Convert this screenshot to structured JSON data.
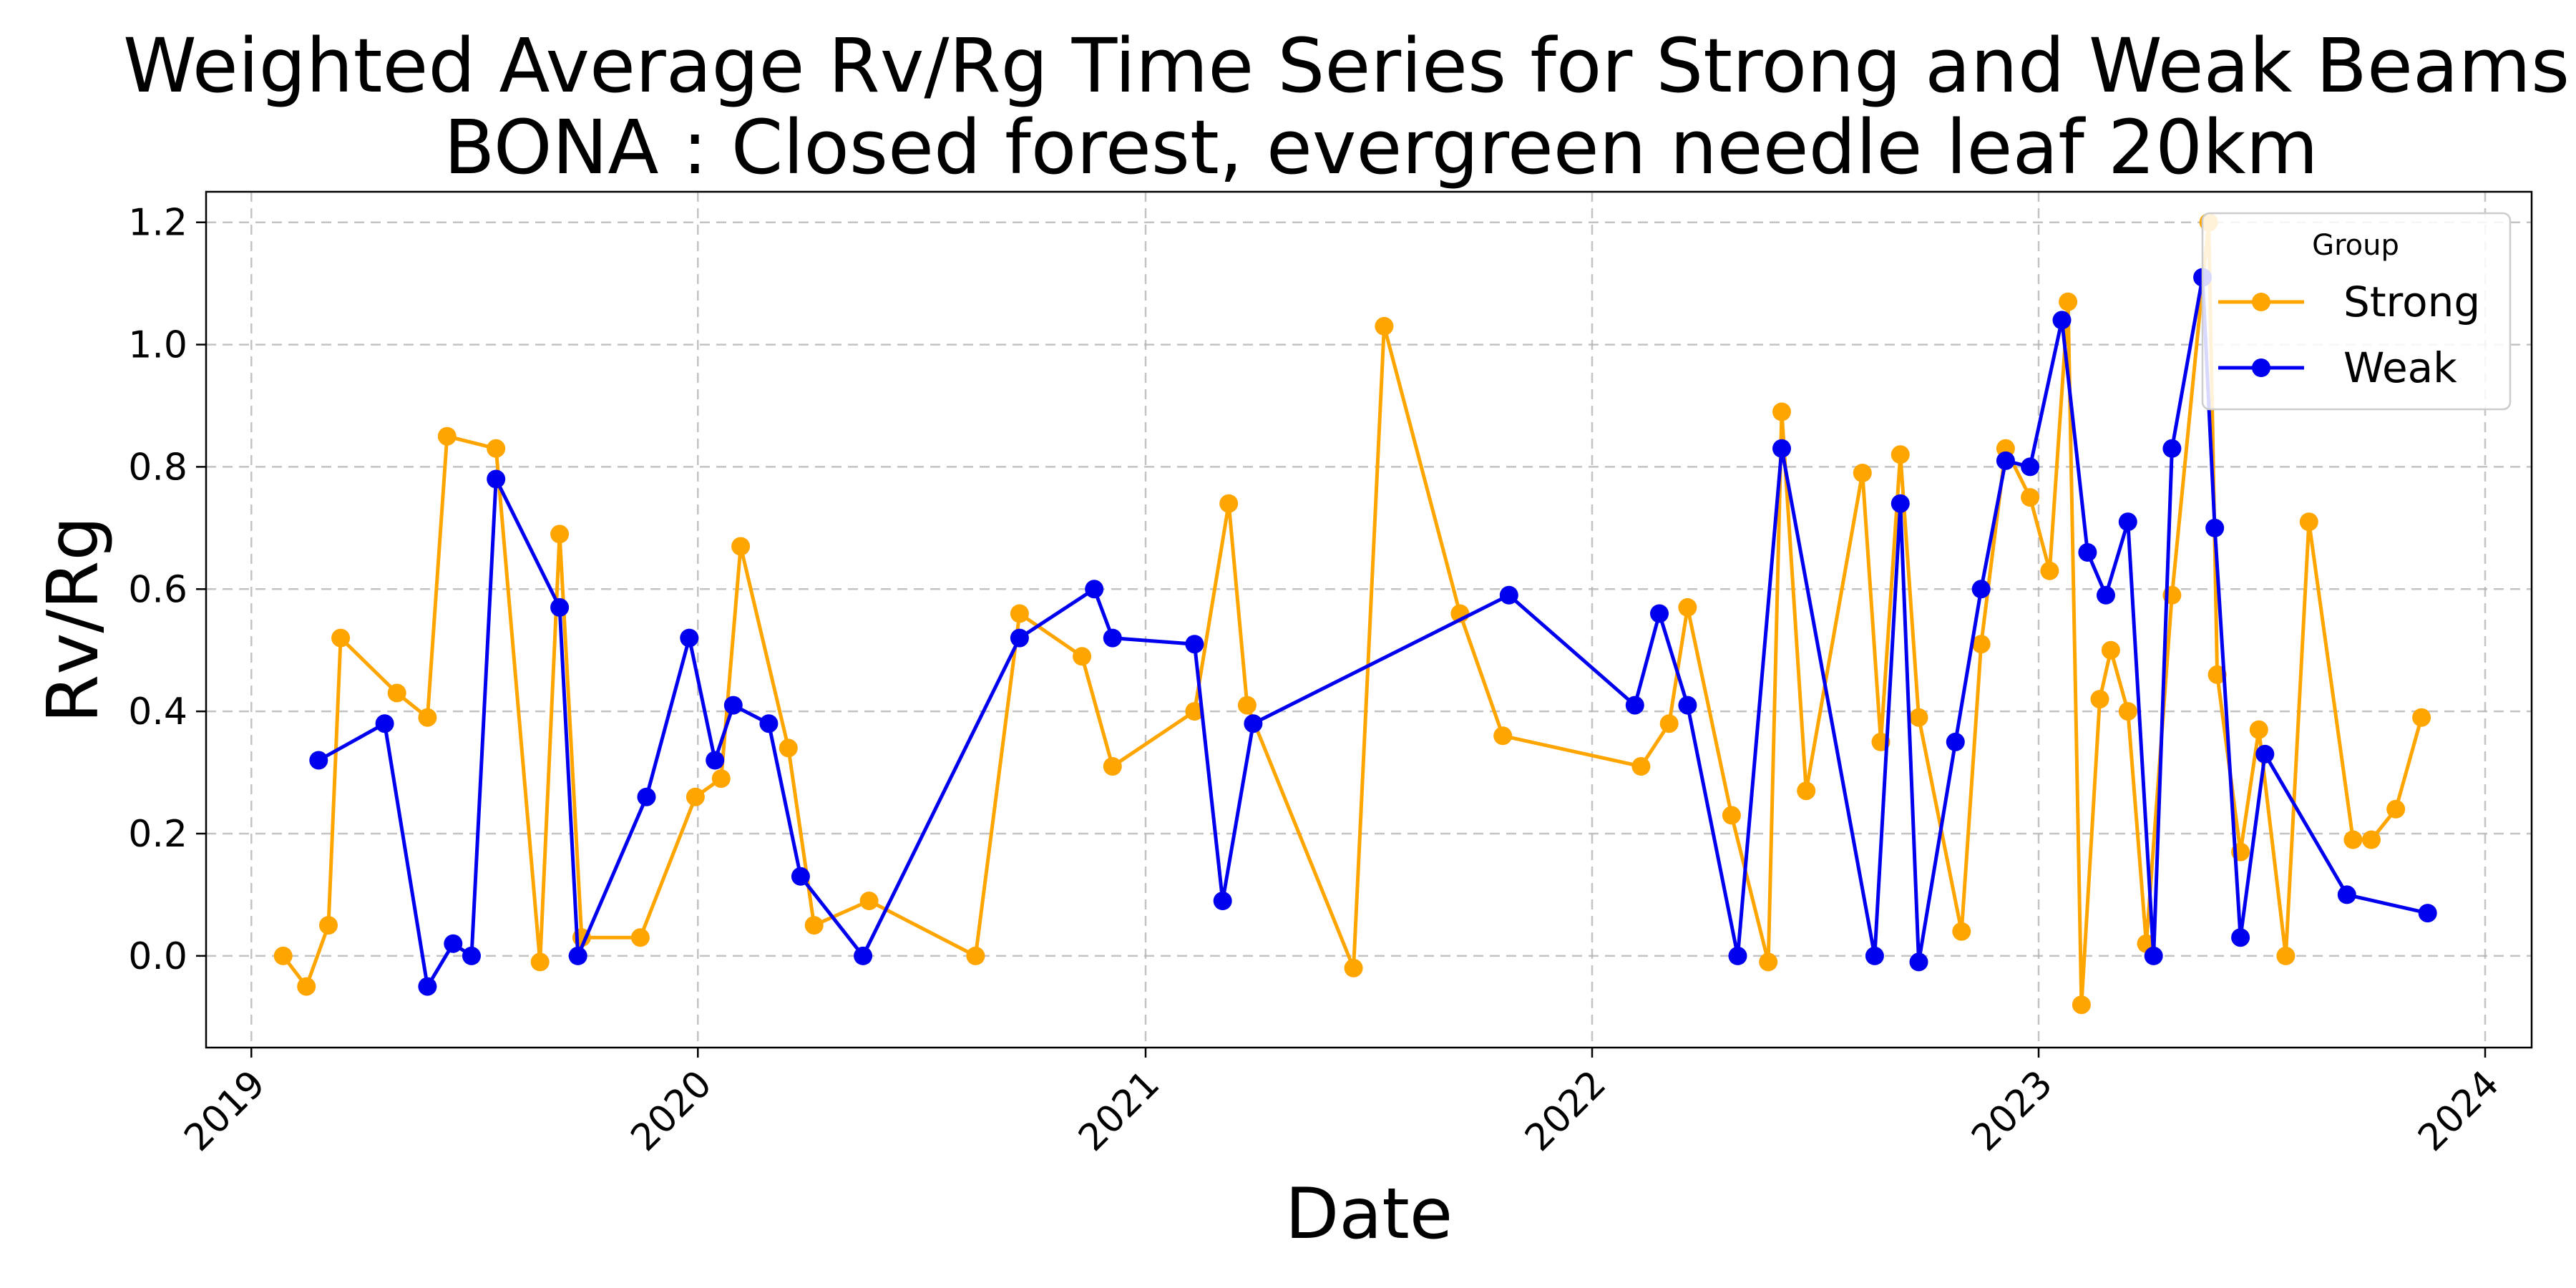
{
  "chart_data": {
    "type": "line",
    "title_lines": [
      "Weighted Average Rv/Rg Time Series for Strong and Weak Beams a",
      "BONA : Closed forest, evergreen needle leaf 20km"
    ],
    "xlabel": "Date",
    "ylabel": "Rv/Rg",
    "xlim": [
      "2018-11-25",
      "2024-02-08"
    ],
    "ylim": [
      -0.15,
      1.25
    ],
    "x_ticks": [
      "2019",
      "2020",
      "2021",
      "2022",
      "2023",
      "2024"
    ],
    "y_ticks": [
      "0.0",
      "0.2",
      "0.4",
      "0.6",
      "0.8",
      "1.0",
      "1.2"
    ],
    "grid": true,
    "legend": {
      "title": "Group",
      "placement": "top-right"
    },
    "series": [
      {
        "name": "Strong",
        "color": "#FFA500",
        "marker": "circle",
        "points": [
          [
            "2019-01-27",
            0.0
          ],
          [
            "2019-02-15",
            -0.05
          ],
          [
            "2019-03-05",
            0.05
          ],
          [
            "2019-03-15",
            0.52
          ],
          [
            "2019-04-30",
            0.43
          ],
          [
            "2019-05-25",
            0.39
          ],
          [
            "2019-06-10",
            0.85
          ],
          [
            "2019-07-20",
            0.83
          ],
          [
            "2019-08-25",
            -0.01
          ],
          [
            "2019-09-10",
            0.69
          ],
          [
            "2019-09-28",
            0.03
          ],
          [
            "2019-11-15",
            0.03
          ],
          [
            "2019-12-30",
            0.26
          ],
          [
            "2020-01-20",
            0.29
          ],
          [
            "2020-02-05",
            0.67
          ],
          [
            "2020-03-15",
            0.34
          ],
          [
            "2020-04-05",
            0.05
          ],
          [
            "2020-05-20",
            0.09
          ],
          [
            "2020-08-15",
            0.0
          ],
          [
            "2020-09-20",
            0.56
          ],
          [
            "2020-11-10",
            0.49
          ],
          [
            "2020-12-05",
            0.31
          ],
          [
            "2021-02-10",
            0.4
          ],
          [
            "2021-03-10",
            0.74
          ],
          [
            "2021-03-25",
            0.41
          ],
          [
            "2021-06-20",
            -0.02
          ],
          [
            "2021-07-15",
            1.03
          ],
          [
            "2021-09-15",
            0.56
          ],
          [
            "2021-10-20",
            0.36
          ],
          [
            "2022-02-10",
            0.31
          ],
          [
            "2022-03-05",
            0.38
          ],
          [
            "2022-03-20",
            0.57
          ],
          [
            "2022-04-25",
            0.23
          ],
          [
            "2022-05-25",
            -0.01
          ],
          [
            "2022-06-05",
            0.89
          ],
          [
            "2022-06-25",
            0.27
          ],
          [
            "2022-08-10",
            0.79
          ],
          [
            "2022-08-25",
            0.35
          ],
          [
            "2022-09-10",
            0.82
          ],
          [
            "2022-09-25",
            0.39
          ],
          [
            "2022-10-30",
            0.04
          ],
          [
            "2022-11-15",
            0.51
          ],
          [
            "2022-12-05",
            0.83
          ],
          [
            "2022-12-25",
            0.75
          ],
          [
            "2023-01-10",
            0.63
          ],
          [
            "2023-01-25",
            1.07
          ],
          [
            "2023-02-05",
            -0.08
          ],
          [
            "2023-02-20",
            0.42
          ],
          [
            "2023-03-01",
            0.5
          ],
          [
            "2023-03-15",
            0.4
          ],
          [
            "2023-03-30",
            0.02
          ],
          [
            "2023-04-20",
            0.59
          ],
          [
            "2023-05-20",
            1.2
          ],
          [
            "2023-05-27",
            0.46
          ],
          [
            "2023-06-15",
            0.17
          ],
          [
            "2023-06-30",
            0.37
          ],
          [
            "2023-07-22",
            0.0
          ],
          [
            "2023-08-10",
            0.71
          ],
          [
            "2023-09-15",
            0.19
          ],
          [
            "2023-09-30",
            0.19
          ],
          [
            "2023-10-20",
            0.24
          ],
          [
            "2023-11-10",
            0.39
          ]
        ]
      },
      {
        "name": "Weak",
        "color": "#0000EE",
        "marker": "circle",
        "points": [
          [
            "2019-02-25",
            0.32
          ],
          [
            "2019-04-20",
            0.38
          ],
          [
            "2019-05-25",
            -0.05
          ],
          [
            "2019-06-15",
            0.02
          ],
          [
            "2019-06-30",
            0.0
          ],
          [
            "2019-07-20",
            0.78
          ],
          [
            "2019-09-10",
            0.57
          ],
          [
            "2019-09-25",
            0.0
          ],
          [
            "2019-11-20",
            0.26
          ],
          [
            "2019-12-25",
            0.52
          ],
          [
            "2020-01-15",
            0.32
          ],
          [
            "2020-01-30",
            0.41
          ],
          [
            "2020-02-28",
            0.38
          ],
          [
            "2020-03-25",
            0.13
          ],
          [
            "2020-05-15",
            0.0
          ],
          [
            "2020-09-20",
            0.52
          ],
          [
            "2020-11-20",
            0.6
          ],
          [
            "2020-12-05",
            0.52
          ],
          [
            "2021-02-10",
            0.51
          ],
          [
            "2021-03-05",
            0.09
          ],
          [
            "2021-03-30",
            0.38
          ],
          [
            "2021-10-25",
            0.59
          ],
          [
            "2022-02-05",
            0.41
          ],
          [
            "2022-02-25",
            0.56
          ],
          [
            "2022-03-20",
            0.41
          ],
          [
            "2022-04-30",
            0.0
          ],
          [
            "2022-06-05",
            0.83
          ],
          [
            "2022-08-20",
            0.0
          ],
          [
            "2022-09-10",
            0.74
          ],
          [
            "2022-09-25",
            -0.01
          ],
          [
            "2022-10-25",
            0.35
          ],
          [
            "2022-11-15",
            0.6
          ],
          [
            "2022-12-05",
            0.81
          ],
          [
            "2022-12-25",
            0.8
          ],
          [
            "2023-01-20",
            1.04
          ],
          [
            "2023-02-10",
            0.66
          ],
          [
            "2023-02-25",
            0.59
          ],
          [
            "2023-03-15",
            0.71
          ],
          [
            "2023-04-05",
            0.0
          ],
          [
            "2023-04-20",
            0.83
          ],
          [
            "2023-05-15",
            1.11
          ],
          [
            "2023-05-25",
            0.7
          ],
          [
            "2023-06-15",
            0.03
          ],
          [
            "2023-07-05",
            0.33
          ],
          [
            "2023-09-10",
            0.1
          ],
          [
            "2023-11-15",
            0.07
          ]
        ]
      }
    ]
  }
}
